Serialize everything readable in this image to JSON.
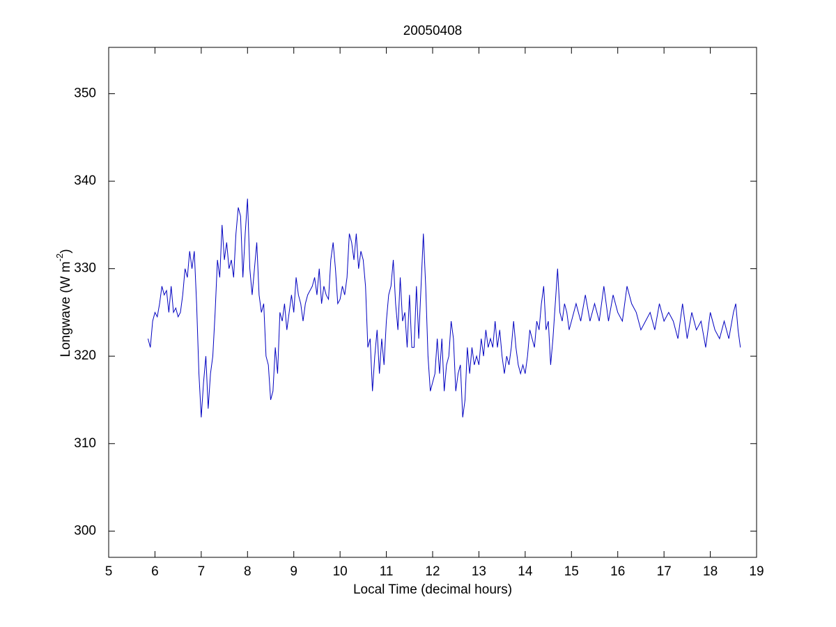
{
  "chart_data": {
    "type": "line",
    "title": "20050408",
    "xlabel": "Local Time (decimal hours)",
    "ylabel": {
      "text": "Longwave (W m",
      "superscript": "-2",
      "suffix": ")"
    },
    "xlim": [
      5,
      19
    ],
    "ylim": [
      297,
      355.3
    ],
    "xticks": [
      5,
      6,
      7,
      8,
      9,
      10,
      11,
      12,
      13,
      14,
      15,
      16,
      17,
      18,
      19
    ],
    "yticks": [
      300,
      310,
      320,
      330,
      340,
      350
    ],
    "grid": false,
    "x": [
      5.85,
      5.9,
      5.95,
      6.0,
      6.05,
      6.1,
      6.15,
      6.2,
      6.25,
      6.3,
      6.35,
      6.4,
      6.45,
      6.5,
      6.55,
      6.6,
      6.65,
      6.7,
      6.75,
      6.8,
      6.85,
      6.9,
      6.95,
      7.0,
      7.05,
      7.1,
      7.15,
      7.2,
      7.25,
      7.3,
      7.35,
      7.4,
      7.45,
      7.5,
      7.55,
      7.6,
      7.65,
      7.7,
      7.75,
      7.8,
      7.85,
      7.9,
      7.95,
      8.0,
      8.05,
      8.1,
      8.15,
      8.2,
      8.25,
      8.3,
      8.35,
      8.4,
      8.45,
      8.5,
      8.55,
      8.6,
      8.65,
      8.7,
      8.75,
      8.8,
      8.85,
      8.9,
      8.95,
      9.0,
      9.05,
      9.1,
      9.15,
      9.2,
      9.25,
      9.3,
      9.35,
      9.4,
      9.45,
      9.5,
      9.55,
      9.6,
      9.65,
      9.7,
      9.75,
      9.8,
      9.85,
      9.9,
      9.95,
      10.0,
      10.05,
      10.1,
      10.15,
      10.2,
      10.25,
      10.3,
      10.35,
      10.4,
      10.45,
      10.5,
      10.55,
      10.6,
      10.65,
      10.7,
      10.75,
      10.8,
      10.85,
      10.9,
      10.95,
      11.0,
      11.05,
      11.1,
      11.15,
      11.2,
      11.25,
      11.3,
      11.35,
      11.4,
      11.45,
      11.5,
      11.55,
      11.6,
      11.65,
      11.7,
      11.75,
      11.8,
      11.85,
      11.9,
      11.95,
      12.0,
      12.05,
      12.1,
      12.15,
      12.2,
      12.25,
      12.3,
      12.35,
      12.4,
      12.45,
      12.5,
      12.55,
      12.6,
      12.65,
      12.7,
      12.75,
      12.8,
      12.85,
      12.9,
      12.95,
      13.0,
      13.05,
      13.1,
      13.15,
      13.2,
      13.25,
      13.3,
      13.35,
      13.4,
      13.45,
      13.5,
      13.55,
      13.6,
      13.65,
      13.7,
      13.75,
      13.8,
      13.85,
      13.9,
      13.95,
      14.0,
      14.05,
      14.1,
      14.15,
      14.2,
      14.25,
      14.3,
      14.35,
      14.4,
      14.45,
      14.5,
      14.55,
      14.6,
      14.65,
      14.7,
      14.75,
      14.8,
      14.85,
      14.9,
      14.95,
      15.0,
      15.1,
      15.2,
      15.3,
      15.4,
      15.5,
      15.6,
      15.7,
      15.8,
      15.9,
      16.0,
      16.1,
      16.2,
      16.3,
      16.4,
      16.5,
      16.6,
      16.7,
      16.8,
      16.9,
      17.0,
      17.1,
      17.2,
      17.3,
      17.4,
      17.5,
      17.6,
      17.7,
      17.8,
      17.9,
      18.0,
      18.1,
      18.2,
      18.3,
      18.4,
      18.5,
      18.55,
      18.6,
      18.65
    ],
    "series": [
      {
        "color": "#0000c0",
        "values": [
          322,
          321,
          324,
          325,
          324.5,
          326,
          328,
          327,
          327.5,
          325,
          328,
          325,
          325.5,
          324.5,
          325,
          327,
          330,
          329,
          332,
          330,
          332,
          326,
          318,
          313,
          317,
          320,
          314,
          318,
          320,
          325,
          331,
          329,
          335,
          331,
          333,
          330,
          331,
          329,
          334,
          337,
          336,
          329,
          334,
          338,
          330,
          327,
          330,
          333,
          327,
          325,
          326,
          320,
          319,
          315,
          316,
          321,
          318,
          325,
          324,
          326,
          323,
          325,
          327,
          325,
          329,
          327,
          326,
          324,
          326,
          327,
          327.5,
          328,
          329,
          327,
          330,
          326,
          328,
          327,
          326.5,
          331,
          333,
          330,
          326,
          326.5,
          328,
          327,
          329,
          334,
          333,
          331,
          334,
          330,
          332,
          331,
          328,
          321,
          322,
          316,
          320,
          323,
          318,
          322,
          319,
          324,
          327,
          328,
          331,
          326,
          323,
          329,
          324,
          325,
          321,
          327,
          321,
          321,
          328,
          322,
          328,
          334,
          328,
          320,
          316,
          317,
          318,
          322,
          318,
          322,
          316,
          319,
          320,
          324,
          322,
          316,
          318,
          319,
          313,
          315,
          321,
          318,
          321,
          319,
          320,
          319,
          322,
          320,
          323,
          321,
          322,
          321,
          324,
          321,
          323,
          320,
          318,
          320,
          319,
          321,
          324,
          321,
          319,
          318,
          319,
          318,
          320,
          323,
          322,
          321,
          324,
          323,
          326,
          328,
          323,
          324,
          319,
          322,
          326,
          330,
          325,
          324,
          326,
          325,
          323,
          324,
          326,
          324,
          327,
          324,
          326,
          324,
          328,
          324,
          327,
          325,
          324,
          328,
          326,
          325,
          323,
          324,
          325,
          323,
          326,
          324,
          325,
          324,
          322,
          326,
          322,
          325,
          323,
          324,
          321,
          325,
          323,
          322,
          324,
          322,
          325,
          326,
          323,
          321
        ]
      }
    ]
  }
}
